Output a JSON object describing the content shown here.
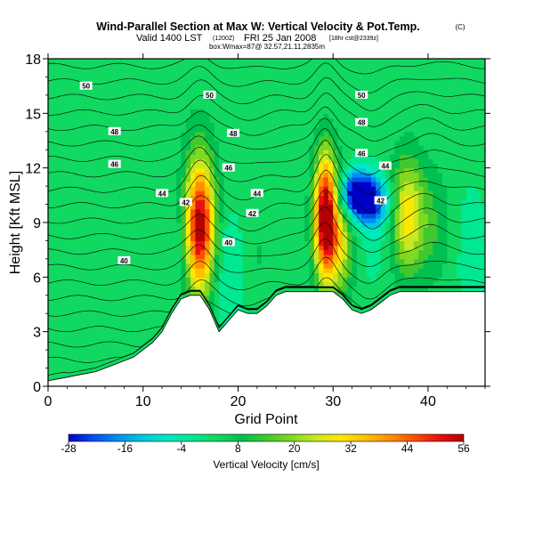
{
  "chart_data": {
    "type": "heatmap",
    "title": "Wind-Parallel Section at Max W: Vertical Velocity & Pot.Temp.",
    "title_mark": "(C)",
    "subtitle_main": "Valid 1400 LST",
    "subtitle_hint": "(1200Z)",
    "subtitle_date": "FRI 25 Jan 2008",
    "subtitle_note": "[18hr cst@2339z]",
    "subtitle2": "box:Wmax=87@ 32.57,21.11,2835m",
    "xlabel": "Grid Point",
    "ylabel": "Height [Kft MSL]",
    "xlim": [
      0,
      46
    ],
    "ylim": [
      0,
      18
    ],
    "xticks": [
      "0",
      "10",
      "20",
      "30",
      "40"
    ],
    "yticks": [
      "0",
      "3",
      "6",
      "9",
      "12",
      "15",
      "18"
    ],
    "colorbar": {
      "label": "Vertical Velocity [cm/s]",
      "tick_labels": [
        "-28",
        "-16",
        "-4",
        "8",
        "20",
        "32",
        "44",
        "56"
      ],
      "range": [
        -28,
        56
      ],
      "colors": [
        "#0000c8",
        "#0050f0",
        "#0090f0",
        "#00c8e0",
        "#00e8c0",
        "#00e890",
        "#10d860",
        "#00c050",
        "#40c830",
        "#80d820",
        "#c8e820",
        "#ffe800",
        "#ffc000",
        "#ff9000",
        "#ff5000",
        "#e81010",
        "#b40000"
      ]
    },
    "terrain": [
      [
        0,
        0.3
      ],
      [
        1,
        0.4
      ],
      [
        2,
        0.5
      ],
      [
        3,
        0.6
      ],
      [
        4,
        0.7
      ],
      [
        5,
        0.8
      ],
      [
        6,
        1.0
      ],
      [
        7,
        1.2
      ],
      [
        8,
        1.4
      ],
      [
        9,
        1.6
      ],
      [
        10,
        2.0
      ],
      [
        11,
        2.4
      ],
      [
        12,
        3.0
      ],
      [
        13,
        4.0
      ],
      [
        14,
        4.8
      ],
      [
        15,
        5.0
      ],
      [
        16,
        5.0
      ],
      [
        17,
        4.2
      ],
      [
        18,
        3.0
      ],
      [
        19,
        3.6
      ],
      [
        20,
        4.2
      ],
      [
        21,
        4.0
      ],
      [
        22,
        4.0
      ],
      [
        23,
        4.4
      ],
      [
        24,
        5.0
      ],
      [
        25,
        5.2
      ],
      [
        26,
        5.2
      ],
      [
        27,
        5.2
      ],
      [
        28,
        5.2
      ],
      [
        29,
        5.2
      ],
      [
        30,
        5.2
      ],
      [
        31,
        4.8
      ],
      [
        32,
        4.2
      ],
      [
        33,
        4.0
      ],
      [
        34,
        4.2
      ],
      [
        35,
        4.6
      ],
      [
        36,
        5.0
      ],
      [
        37,
        5.2
      ],
      [
        38,
        5.2
      ],
      [
        39,
        5.2
      ],
      [
        40,
        5.2
      ],
      [
        41,
        5.2
      ],
      [
        42,
        5.2
      ],
      [
        43,
        5.2
      ],
      [
        44,
        5.2
      ],
      [
        45,
        5.2
      ],
      [
        46,
        5.2
      ]
    ],
    "w_features": [
      {
        "x": 16.0,
        "y": 8.8,
        "sx": 1.1,
        "sy": 2.6,
        "w": 52
      },
      {
        "x": 13.8,
        "y": 7.5,
        "sx": 0.7,
        "sy": 2.0,
        "w": -4
      },
      {
        "x": 18.8,
        "y": 6.5,
        "sx": 1.3,
        "sy": 2.2,
        "w": -6
      },
      {
        "x": 22.0,
        "y": 7.2,
        "sx": 1.0,
        "sy": 2.0,
        "w": 4
      },
      {
        "x": 29.2,
        "y": 9.3,
        "sx": 0.85,
        "sy": 2.4,
        "w": 56
      },
      {
        "x": 30.8,
        "y": 8.0,
        "sx": 1.0,
        "sy": 2.2,
        "w": 20
      },
      {
        "x": 32.2,
        "y": 10.6,
        "sx": 1.3,
        "sy": 0.9,
        "w": -28
      },
      {
        "x": 34.0,
        "y": 10.2,
        "sx": 1.5,
        "sy": 1.0,
        "w": -24
      },
      {
        "x": 34.2,
        "y": 8.2,
        "sx": 0.8,
        "sy": 1.8,
        "w": -4
      },
      {
        "x": 37.8,
        "y": 9.5,
        "sx": 1.2,
        "sy": 2.2,
        "w": 26
      },
      {
        "x": 40.5,
        "y": 8.8,
        "sx": 1.4,
        "sy": 2.4,
        "w": 8
      },
      {
        "x": 44.5,
        "y": 7.5,
        "sx": 1.2,
        "sy": 2.5,
        "w": -4
      },
      {
        "x": 9.0,
        "y": 15.0,
        "sx": 8.0,
        "sy": 2.5,
        "w": 2
      },
      {
        "x": 4.0,
        "y": 8.0,
        "sx": 3.0,
        "sy": 4.0,
        "w": 1
      }
    ],
    "contour_labels": [
      {
        "text": "50",
        "x": 4.0,
        "y": 16.5
      },
      {
        "text": "50",
        "x": 17.0,
        "y": 16.0
      },
      {
        "text": "50",
        "x": 33.0,
        "y": 16.0
      },
      {
        "text": "48",
        "x": 7.0,
        "y": 14.0
      },
      {
        "text": "48",
        "x": 19.5,
        "y": 13.9
      },
      {
        "text": "48",
        "x": 33.0,
        "y": 14.5
      },
      {
        "text": "46",
        "x": 7.0,
        "y": 12.2
      },
      {
        "text": "46",
        "x": 19.0,
        "y": 12.0
      },
      {
        "text": "46",
        "x": 33.0,
        "y": 12.8
      },
      {
        "text": "44",
        "x": 12.0,
        "y": 10.6
      },
      {
        "text": "44",
        "x": 22.0,
        "y": 10.6
      },
      {
        "text": "44",
        "x": 35.5,
        "y": 12.1
      },
      {
        "text": "42",
        "x": 14.5,
        "y": 10.1
      },
      {
        "text": "42",
        "x": 21.5,
        "y": 9.5
      },
      {
        "text": "42",
        "x": 35.0,
        "y": 10.2
      },
      {
        "text": "40",
        "x": 19.0,
        "y": 7.9
      },
      {
        "text": "40",
        "x": 8.0,
        "y": 6.9
      }
    ]
  }
}
